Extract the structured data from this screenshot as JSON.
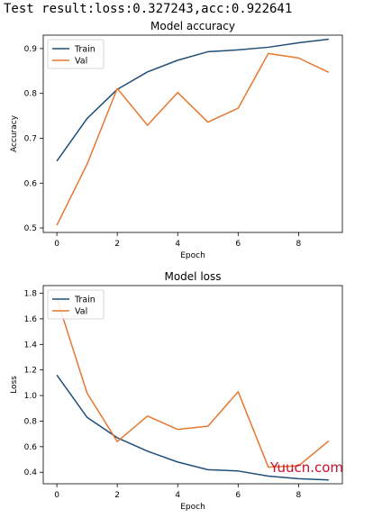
{
  "header": {
    "text": "Test result:loss:0.327243,acc:0.922641"
  },
  "watermark": {
    "text": "Yuucn.com"
  },
  "colors": {
    "train": "#1f4e79",
    "val": "#e8772e",
    "axis": "#000000"
  },
  "chart_data": [
    {
      "type": "line",
      "title": "Model accuracy",
      "xlabel": "Epoch",
      "ylabel": "Accuracy",
      "x": [
        0,
        1,
        2,
        3,
        4,
        5,
        6,
        7,
        8,
        9
      ],
      "xlim": [
        -0.45,
        9.45
      ],
      "ylim": [
        0.49,
        0.93
      ],
      "xticks": [
        0,
        2,
        4,
        6,
        8
      ],
      "yticks": [
        0.5,
        0.6,
        0.7,
        0.8,
        0.9
      ],
      "grid": false,
      "legend": "upper left",
      "series": [
        {
          "name": "Train",
          "values": [
            0.649,
            0.744,
            0.809,
            0.848,
            0.874,
            0.893,
            0.897,
            0.903,
            0.913,
            0.921
          ]
        },
        {
          "name": "Val",
          "values": [
            0.506,
            0.642,
            0.811,
            0.729,
            0.802,
            0.736,
            0.767,
            0.889,
            0.879,
            0.847
          ]
        }
      ]
    },
    {
      "type": "line",
      "title": "Model loss",
      "xlabel": "Epoch",
      "ylabel": "Loss",
      "x": [
        0,
        1,
        2,
        3,
        4,
        5,
        6,
        7,
        8,
        9
      ],
      "xlim": [
        -0.45,
        9.45
      ],
      "ylim": [
        0.31,
        1.86
      ],
      "xticks": [
        0,
        2,
        4,
        6,
        8
      ],
      "yticks": [
        0.4,
        0.6,
        0.8,
        1.0,
        1.2,
        1.4,
        1.6,
        1.8
      ],
      "grid": false,
      "legend": "upper left",
      "series": [
        {
          "name": "Train",
          "values": [
            1.16,
            0.83,
            0.67,
            0.565,
            0.48,
            0.42,
            0.41,
            0.37,
            0.35,
            0.34
          ]
        },
        {
          "name": "Val",
          "values": [
            1.76,
            1.02,
            0.64,
            0.84,
            0.735,
            0.76,
            1.03,
            0.44,
            0.45,
            0.645
          ]
        }
      ]
    }
  ]
}
